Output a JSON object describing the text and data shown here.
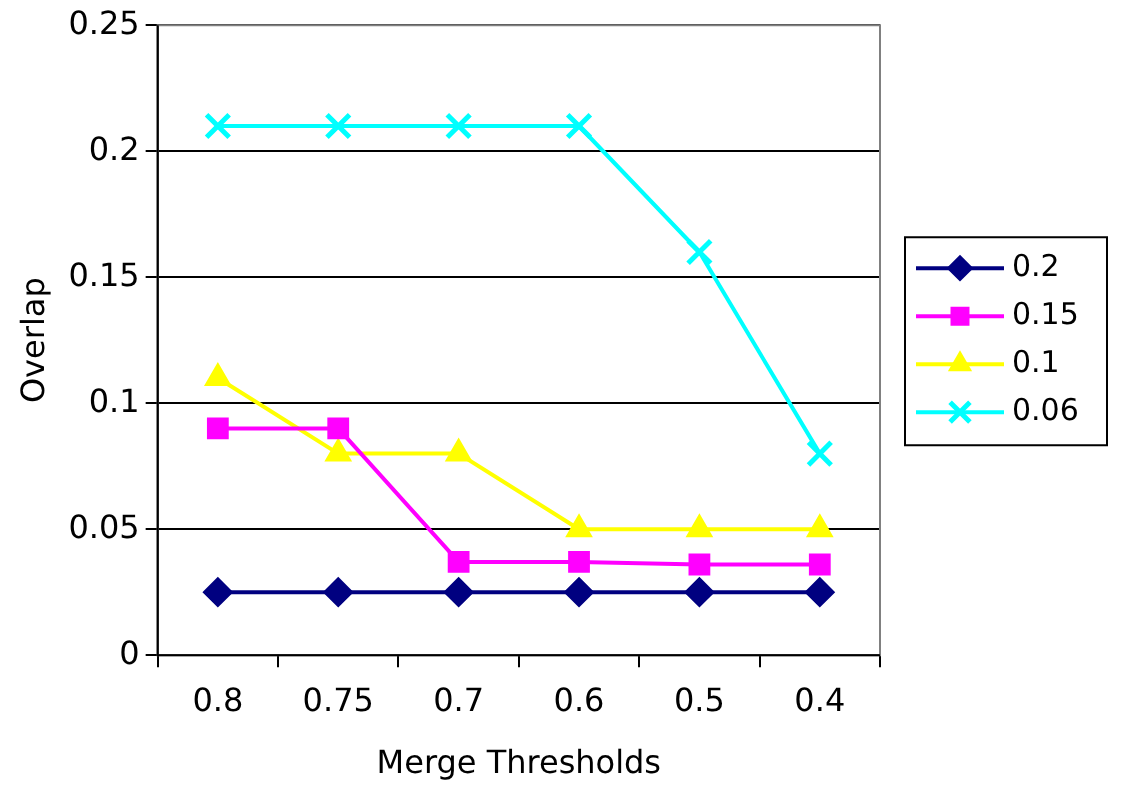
{
  "chart_data": {
    "type": "line",
    "xlabel": "Merge Thresholds",
    "ylabel": "Overlap",
    "categories": [
      "0.8",
      "0.75",
      "0.7",
      "0.6",
      "0.5",
      "0.4"
    ],
    "series": [
      {
        "name": "0.2",
        "color": "#000080",
        "marker": "diamond",
        "values": [
          0.025,
          0.025,
          0.025,
          0.025,
          0.025,
          0.025
        ]
      },
      {
        "name": "0.15",
        "color": "#ff00ff",
        "marker": "square",
        "values": [
          0.09,
          0.09,
          0.037,
          0.037,
          0.036,
          0.036
        ]
      },
      {
        "name": "0.1",
        "color": "#ffff00",
        "marker": "triangle",
        "values": [
          0.11,
          0.08,
          0.08,
          0.05,
          0.05,
          0.05
        ]
      },
      {
        "name": "0.06",
        "color": "#00ffff",
        "marker": "cross",
        "values": [
          0.21,
          0.21,
          0.21,
          0.21,
          0.16,
          0.08
        ]
      }
    ],
    "ylim": [
      0,
      0.25
    ],
    "yticks": [
      0,
      0.05,
      0.1,
      0.15,
      0.2,
      0.25
    ],
    "grid": "y",
    "legend": "right"
  }
}
